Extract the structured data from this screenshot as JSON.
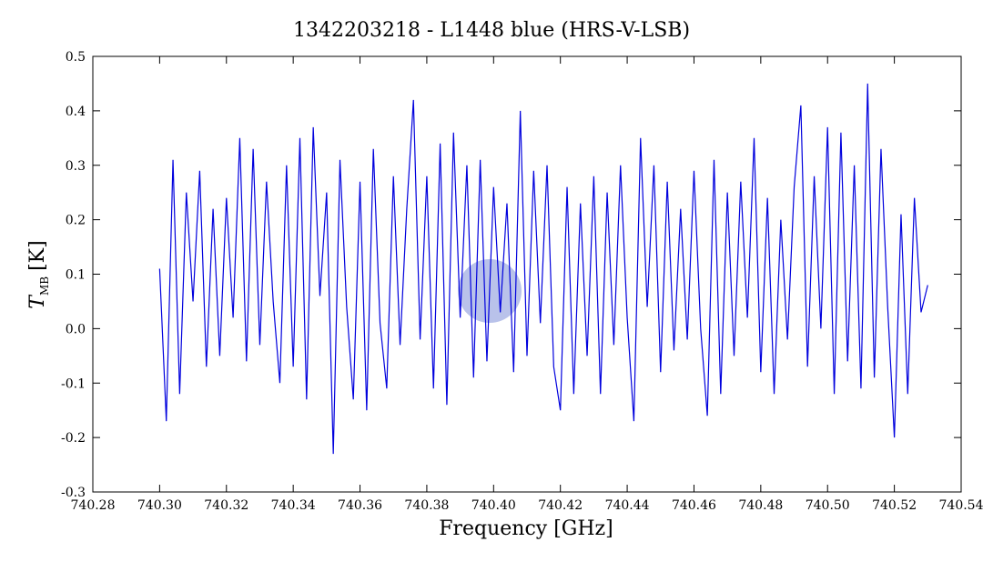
{
  "chart_data": {
    "type": "line",
    "title": "1342203218 - L1448 blue (HRS-V-LSB)",
    "xlabel": "Frequency [GHz]",
    "ylabel": {
      "main": "T",
      "sub": "MB",
      "unit": "[K]"
    },
    "xlim": [
      740.28,
      740.54
    ],
    "xticks": [
      740.28,
      {
        "value": 740.3,
        "label": "740.30"
      },
      740.32,
      740.34,
      740.36,
      740.38,
      {
        "value": 740.4,
        "label": "740.40"
      },
      740.42,
      740.44,
      740.46,
      740.48,
      {
        "value": 740.5,
        "label": "740.50"
      },
      740.52,
      740.54
    ],
    "ylim": [
      -0.3,
      0.5
    ],
    "yticks": [
      -0.3,
      -0.2,
      -0.1,
      {
        "value": 0,
        "label": "0.0"
      },
      0.1,
      0.2,
      0.3,
      0.4,
      0.5
    ],
    "series": [
      {
        "name": "HRS-V-LSB",
        "color": "#0000dd",
        "x": [
          740.3,
          740.302,
          740.304,
          740.306,
          740.308,
          740.31,
          740.312,
          740.314,
          740.316,
          740.318,
          740.32,
          740.322,
          740.324,
          740.326,
          740.328,
          740.33,
          740.332,
          740.334,
          740.336,
          740.338,
          740.34,
          740.342,
          740.344,
          740.346,
          740.348,
          740.35,
          740.352,
          740.354,
          740.356,
          740.358,
          740.36,
          740.362,
          740.364,
          740.366,
          740.368,
          740.37,
          740.372,
          740.374,
          740.376,
          740.378,
          740.38,
          740.382,
          740.384,
          740.386,
          740.388,
          740.39,
          740.392,
          740.394,
          740.396,
          740.398,
          740.4,
          740.402,
          740.404,
          740.406,
          740.408,
          740.41,
          740.412,
          740.414,
          740.416,
          740.418,
          740.42,
          740.422,
          740.424,
          740.426,
          740.428,
          740.43,
          740.432,
          740.434,
          740.436,
          740.438,
          740.44,
          740.442,
          740.444,
          740.446,
          740.448,
          740.45,
          740.452,
          740.454,
          740.456,
          740.458,
          740.46,
          740.462,
          740.464,
          740.466,
          740.468,
          740.47,
          740.472,
          740.474,
          740.476,
          740.478,
          740.48,
          740.482,
          740.484,
          740.486,
          740.488,
          740.49,
          740.492,
          740.494,
          740.496,
          740.498,
          740.5,
          740.502,
          740.504,
          740.506,
          740.508,
          740.51,
          740.512,
          740.514,
          740.516,
          740.518,
          740.52,
          740.522,
          740.524,
          740.526,
          740.528,
          740.53
        ],
        "values": [
          0.11,
          -0.17,
          0.31,
          -0.12,
          0.25,
          0.05,
          0.29,
          -0.07,
          0.22,
          -0.05,
          0.24,
          0.02,
          0.35,
          -0.06,
          0.33,
          -0.03,
          0.27,
          0.05,
          -0.1,
          0.3,
          -0.07,
          0.35,
          -0.13,
          0.37,
          0.06,
          0.25,
          -0.23,
          0.31,
          0.04,
          -0.13,
          0.27,
          -0.15,
          0.33,
          0.01,
          -0.11,
          0.28,
          -0.03,
          0.22,
          0.42,
          -0.02,
          0.28,
          -0.11,
          0.34,
          -0.14,
          0.36,
          0.02,
          0.3,
          -0.09,
          0.31,
          -0.06,
          0.26,
          0.03,
          0.23,
          -0.08,
          0.4,
          -0.05,
          0.29,
          0.01,
          0.3,
          -0.07,
          -0.15,
          0.26,
          -0.12,
          0.23,
          -0.05,
          0.28,
          -0.12,
          0.25,
          -0.03,
          0.3,
          0.02,
          -0.17,
          0.35,
          0.04,
          0.3,
          -0.08,
          0.27,
          -0.04,
          0.22,
          -0.02,
          0.29,
          0.0,
          -0.16,
          0.31,
          -0.12,
          0.25,
          -0.05,
          0.27,
          0.02,
          0.35,
          -0.08,
          0.24,
          -0.12,
          0.2,
          -0.02,
          0.26,
          0.41,
          -0.07,
          0.28,
          0.0,
          0.37,
          -0.12,
          0.36,
          -0.06,
          0.3,
          -0.11,
          0.45,
          -0.09,
          0.33,
          0.04,
          -0.2,
          0.21,
          -0.12,
          0.24,
          0.03,
          0.08
        ]
      }
    ]
  }
}
